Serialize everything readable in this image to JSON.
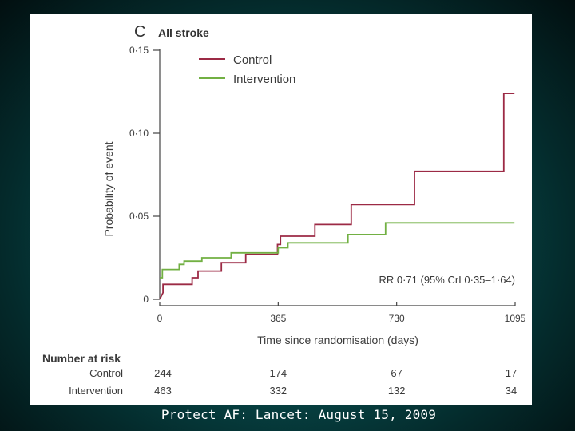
{
  "panel": {
    "letter": "C",
    "title": "All stroke"
  },
  "chart_data": {
    "type": "line",
    "title": "All stroke",
    "xlabel": "Time since randomisation (days)",
    "ylabel": "Probability of event",
    "xlim": [
      0,
      1095
    ],
    "ylim": [
      0,
      0.15
    ],
    "x_ticks": [
      0,
      365,
      730,
      1095
    ],
    "x_tick_labels": [
      "0",
      "365",
      "730",
      "1095"
    ],
    "y_ticks": [
      0,
      0.05,
      0.1,
      0.15
    ],
    "y_tick_labels": [
      "0",
      "0·05",
      "0·10",
      "0·15"
    ],
    "legend_position": "top-left",
    "series": [
      {
        "name": "Control",
        "color": "#9c2a45",
        "step": true,
        "points": [
          [
            0,
            0
          ],
          [
            10,
            0.004
          ],
          [
            10,
            0.009
          ],
          [
            100,
            0.009
          ],
          [
            100,
            0.013
          ],
          [
            118,
            0.013
          ],
          [
            118,
            0.017
          ],
          [
            190,
            0.017
          ],
          [
            190,
            0.022
          ],
          [
            265,
            0.022
          ],
          [
            265,
            0.027
          ],
          [
            363,
            0.027
          ],
          [
            363,
            0.033
          ],
          [
            372,
            0.033
          ],
          [
            372,
            0.038
          ],
          [
            478,
            0.038
          ],
          [
            478,
            0.045
          ],
          [
            590,
            0.045
          ],
          [
            590,
            0.057
          ],
          [
            785,
            0.057
          ],
          [
            785,
            0.077
          ],
          [
            1060,
            0.077
          ],
          [
            1060,
            0.124
          ],
          [
            1093,
            0.124
          ]
        ]
      },
      {
        "name": "Intervention",
        "color": "#72b043",
        "step": true,
        "points": [
          [
            0,
            0.013
          ],
          [
            8,
            0.013
          ],
          [
            8,
            0.018
          ],
          [
            60,
            0.018
          ],
          [
            60,
            0.021
          ],
          [
            75,
            0.021
          ],
          [
            75,
            0.023
          ],
          [
            130,
            0.023
          ],
          [
            130,
            0.025
          ],
          [
            220,
            0.025
          ],
          [
            220,
            0.028
          ],
          [
            365,
            0.028
          ],
          [
            365,
            0.031
          ],
          [
            395,
            0.031
          ],
          [
            395,
            0.034
          ],
          [
            580,
            0.034
          ],
          [
            580,
            0.039
          ],
          [
            696,
            0.039
          ],
          [
            696,
            0.046
          ],
          [
            1093,
            0.046
          ]
        ]
      }
    ],
    "annotations": [
      "RR 0·71 (95% CrI 0·35–1·64)"
    ]
  },
  "number_at_risk": {
    "header": "Number at risk",
    "rows": [
      {
        "label": "Control",
        "values": [
          "244",
          "174",
          "67",
          "17"
        ]
      },
      {
        "label": "Intervention",
        "values": [
          "463",
          "332",
          "132",
          "34"
        ]
      }
    ]
  },
  "footer": {
    "caption": "Protect AF: Lancet: August 15, 2009"
  },
  "colors": {
    "control": "#9c2a45",
    "intervention": "#72b043",
    "axis": "#444444"
  }
}
